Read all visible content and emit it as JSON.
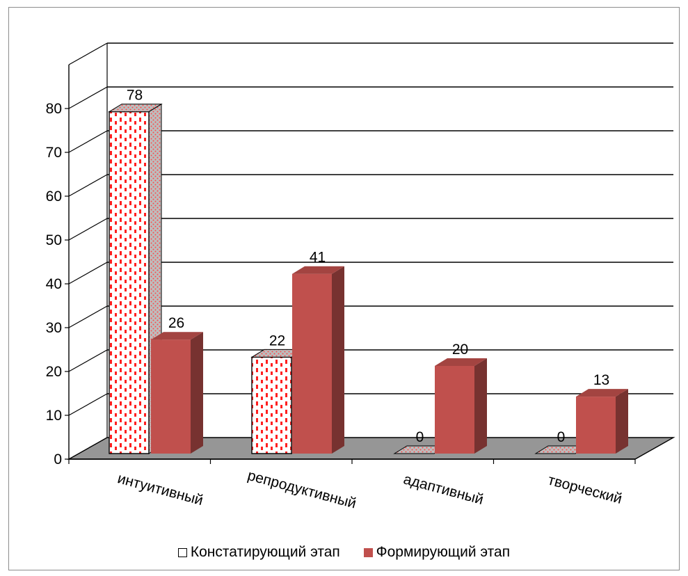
{
  "chart_data": {
    "type": "bar",
    "categories": [
      "интуитивный",
      "репродуктивный",
      "адаптивный",
      "творческий"
    ],
    "series": [
      {
        "name": "Констатирующий этап",
        "values": [
          78,
          22,
          0,
          0
        ],
        "color": "#ffffff",
        "pattern": "red-dotted-stripes"
      },
      {
        "name": "Формирующий этап",
        "values": [
          26,
          41,
          20,
          13
        ],
        "color": "#c0504d"
      }
    ],
    "yticks": [
      "0",
      "10",
      "20",
      "30",
      "40",
      "50",
      "60",
      "70",
      "80"
    ],
    "ylim": [
      0,
      90
    ],
    "grid": true,
    "legend_position": "bottom",
    "floor_color": "#969696",
    "three_d": true
  }
}
